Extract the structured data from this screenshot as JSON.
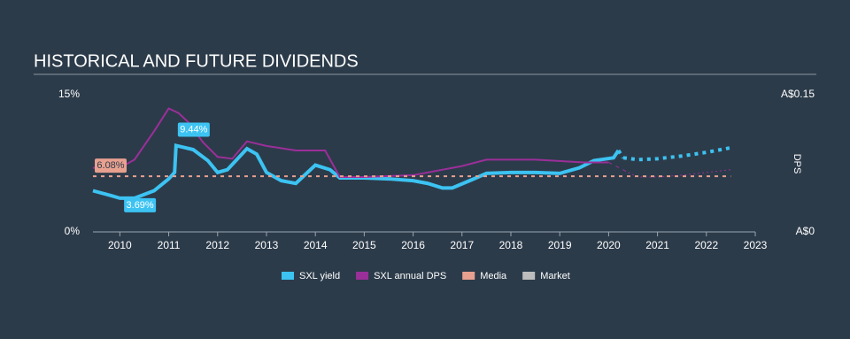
{
  "chart_data": {
    "type": "line",
    "title": "HISTORICAL AND FUTURE DIVIDENDS",
    "xlim": [
      2009.45,
      2023
    ],
    "xticks": [
      2010,
      2011,
      2012,
      2013,
      2014,
      2015,
      2016,
      2017,
      2018,
      2019,
      2020,
      2021,
      2022,
      2023
    ],
    "ylim": [
      0,
      15
    ],
    "yticks": [
      {
        "value": 0,
        "label": "0%"
      },
      {
        "value": 15,
        "label": "15%"
      }
    ],
    "y2lim": [
      0,
      0.15
    ],
    "y2ticks": [
      {
        "value": 0,
        "label": "A$0"
      },
      {
        "value": 0.15,
        "label": "A$0.15"
      }
    ],
    "y2label": "DPS",
    "forecast_start": 2020.2,
    "series": [
      {
        "name": "SXL yield",
        "color": "#3cc3f2",
        "width": 4,
        "x": [
          2009.45,
          2009.8,
          2010,
          2010.3,
          2010.7,
          2011,
          2011.12,
          2011.15,
          2011.5,
          2011.8,
          2012,
          2012.2,
          2012.6,
          2012.8,
          2013,
          2013.3,
          2013.6,
          2014,
          2014.3,
          2014.5,
          2015,
          2015.5,
          2016,
          2016.3,
          2016.6,
          2016.8,
          2017.2,
          2017.5,
          2018,
          2018.5,
          2019,
          2019.4,
          2019.7,
          2020.1,
          2020.2,
          2020.3,
          2020.6,
          2021,
          2021.5,
          2022,
          2022.5
        ],
        "values": [
          4.5,
          4.0,
          3.69,
          3.69,
          4.5,
          5.8,
          6.5,
          9.44,
          9.0,
          7.8,
          6.5,
          6.8,
          9.1,
          8.5,
          6.5,
          5.6,
          5.3,
          7.3,
          6.8,
          5.9,
          5.9,
          5.8,
          5.6,
          5.3,
          4.8,
          4.8,
          5.7,
          6.4,
          6.5,
          6.5,
          6.4,
          7.0,
          7.8,
          8.1,
          8.9,
          8.1,
          7.9,
          8.0,
          8.3,
          8.7,
          9.2
        ]
      },
      {
        "name": "SXL annual DPS",
        "color": "#9b2f99",
        "width": 2,
        "axis": "y2",
        "x": [
          2009.45,
          2010,
          2010.3,
          2010.7,
          2011,
          2011.2,
          2011.4,
          2011.7,
          2012,
          2012.3,
          2012.6,
          2013,
          2013.6,
          2014.2,
          2014.5,
          2015,
          2016,
          2017,
          2017.5,
          2018.5,
          2019.5,
          2020,
          2020.4,
          2020.6,
          2021,
          2021.5,
          2022,
          2022.5
        ],
        "values": [
          0.07,
          0.07,
          0.079,
          0.11,
          0.135,
          0.13,
          0.12,
          0.098,
          0.082,
          0.08,
          0.099,
          0.094,
          0.089,
          0.089,
          0.06,
          0.06,
          0.062,
          0.072,
          0.079,
          0.079,
          0.076,
          0.076,
          0.065,
          0.06,
          0.06,
          0.062,
          0.065,
          0.068
        ]
      },
      {
        "name": "Media",
        "color": "#e8a08f",
        "width": 2,
        "x": [
          2009.45,
          2022.5
        ],
        "values": [
          6.08,
          6.08
        ]
      },
      {
        "name": "Market",
        "color": "#bdbdbd",
        "width": 2,
        "x": [],
        "values": []
      }
    ],
    "annotations": [
      {
        "x": 2011.15,
        "value": 9.44,
        "label": "9.44%",
        "color": "#3cc3f2"
      },
      {
        "x": 2010.05,
        "value": 3.69,
        "label": "3.69%",
        "color": "#3cc3f2"
      },
      {
        "x": 2009.45,
        "value": 6.08,
        "label": "6.08%",
        "color": "#e8a08f"
      }
    ]
  }
}
